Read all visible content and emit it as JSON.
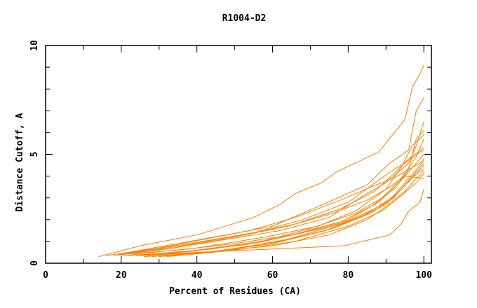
{
  "chart_data": {
    "type": "line",
    "title": "R1004-D2",
    "xlabel": "Percent of Residues (CA)",
    "ylabel": "Distance Cutoff, A",
    "xlim": [
      0,
      102
    ],
    "ylim": [
      0,
      10
    ],
    "xticks": [
      0,
      20,
      40,
      60,
      80,
      100
    ],
    "yticks": [
      0,
      5,
      10
    ],
    "grid": false,
    "line_color": "#ff8000",
    "series": [
      {
        "points": [
          [
            14,
            0.3
          ],
          [
            25,
            0.8
          ],
          [
            40,
            1.3
          ],
          [
            55,
            2.1
          ],
          [
            62,
            2.7
          ],
          [
            66,
            3.2
          ],
          [
            73,
            3.7
          ],
          [
            77,
            4.2
          ],
          [
            88,
            5.1
          ],
          [
            95,
            6.6
          ],
          [
            97,
            8.1
          ],
          [
            99,
            8.7
          ],
          [
            100,
            9.1
          ]
        ]
      },
      {
        "points": [
          [
            20,
            0.35
          ],
          [
            40,
            0.5
          ],
          [
            60,
            0.65
          ],
          [
            79,
            0.8
          ],
          [
            91,
            1.3
          ],
          [
            94,
            1.8
          ],
          [
            96,
            2.4
          ],
          [
            99,
            2.8
          ],
          [
            100,
            3.4
          ]
        ]
      },
      {
        "points": [
          [
            16,
            0.35
          ],
          [
            30,
            0.7
          ],
          [
            45,
            1.2
          ],
          [
            60,
            1.7
          ],
          [
            76,
            2.9
          ],
          [
            85,
            3.6
          ],
          [
            91,
            4.6
          ],
          [
            96,
            5.2
          ],
          [
            98,
            7.0
          ],
          [
            100,
            7.6
          ]
        ]
      },
      {
        "points": [
          [
            18,
            0.35
          ],
          [
            32,
            0.65
          ],
          [
            48,
            1.1
          ],
          [
            62,
            1.5
          ],
          [
            75,
            2.1
          ],
          [
            84,
            3.1
          ],
          [
            90,
            3.7
          ],
          [
            96,
            4.6
          ],
          [
            98,
            5.4
          ],
          [
            100,
            6.5
          ]
        ]
      },
      {
        "points": [
          [
            20,
            0.4
          ],
          [
            35,
            0.6
          ],
          [
            50,
            0.9
          ],
          [
            65,
            1.3
          ],
          [
            78,
            1.9
          ],
          [
            86,
            2.6
          ],
          [
            92,
            3.4
          ],
          [
            96,
            4.3
          ],
          [
            98,
            5.7
          ],
          [
            100,
            6.1
          ]
        ]
      },
      {
        "points": [
          [
            22,
            0.35
          ],
          [
            38,
            0.55
          ],
          [
            55,
            0.9
          ],
          [
            68,
            1.4
          ],
          [
            80,
            2.0
          ],
          [
            88,
            2.8
          ],
          [
            93,
            3.6
          ],
          [
            97,
            4.4
          ],
          [
            100,
            5.0
          ]
        ]
      },
      {
        "points": [
          [
            24,
            0.35
          ],
          [
            40,
            0.6
          ],
          [
            57,
            1.0
          ],
          [
            70,
            1.6
          ],
          [
            82,
            2.3
          ],
          [
            89,
            3.0
          ],
          [
            94,
            3.9
          ],
          [
            98,
            4.9
          ],
          [
            100,
            5.7
          ]
        ]
      },
      {
        "points": [
          [
            20,
            0.4
          ],
          [
            36,
            0.8
          ],
          [
            52,
            1.3
          ],
          [
            66,
            1.8
          ],
          [
            78,
            2.5
          ],
          [
            87,
            3.3
          ],
          [
            92,
            4.1
          ],
          [
            96,
            4.8
          ],
          [
            100,
            5.3
          ]
        ]
      },
      {
        "points": [
          [
            25,
            0.35
          ],
          [
            42,
            0.5
          ],
          [
            60,
            0.8
          ],
          [
            75,
            1.3
          ],
          [
            85,
            2.0
          ],
          [
            90,
            2.6
          ],
          [
            95,
            3.3
          ],
          [
            98,
            3.9
          ],
          [
            100,
            4.2
          ]
        ]
      },
      {
        "points": [
          [
            28,
            0.3
          ],
          [
            45,
            0.55
          ],
          [
            62,
            1.0
          ],
          [
            76,
            1.6
          ],
          [
            86,
            2.3
          ],
          [
            92,
            3.0
          ],
          [
            96,
            3.8
          ],
          [
            100,
            4.6
          ]
        ]
      },
      {
        "points": [
          [
            21,
            0.45
          ],
          [
            38,
            0.9
          ],
          [
            55,
            1.4
          ],
          [
            68,
            2.0
          ],
          [
            80,
            2.8
          ],
          [
            88,
            3.8
          ],
          [
            92,
            4.3
          ],
          [
            95,
            4.6
          ],
          [
            99,
            5.1
          ],
          [
            100,
            5.2
          ]
        ]
      },
      {
        "points": [
          [
            30,
            0.3
          ],
          [
            48,
            0.6
          ],
          [
            64,
            1.1
          ],
          [
            78,
            1.8
          ],
          [
            87,
            2.5
          ],
          [
            93,
            3.2
          ],
          [
            97,
            4.0
          ],
          [
            100,
            4.3
          ]
        ]
      },
      {
        "points": [
          [
            23,
            0.4
          ],
          [
            40,
            0.7
          ],
          [
            58,
            1.2
          ],
          [
            72,
            1.7
          ],
          [
            82,
            2.4
          ],
          [
            90,
            3.4
          ],
          [
            94,
            4.4
          ],
          [
            97,
            5.4
          ],
          [
            100,
            5.9
          ]
        ]
      },
      {
        "points": [
          [
            26,
            0.3
          ],
          [
            43,
            0.5
          ],
          [
            60,
            0.9
          ],
          [
            74,
            1.5
          ],
          [
            84,
            2.2
          ],
          [
            91,
            2.9
          ],
          [
            95,
            3.7
          ],
          [
            99,
            4.5
          ],
          [
            100,
            4.8
          ]
        ]
      },
      {
        "points": [
          [
            19,
            0.4
          ],
          [
            34,
            0.7
          ],
          [
            50,
            1.2
          ],
          [
            64,
            1.7
          ],
          [
            76,
            2.3
          ],
          [
            85,
            2.9
          ],
          [
            91,
            3.5
          ],
          [
            95,
            4.0
          ],
          [
            100,
            3.9
          ]
        ]
      },
      {
        "points": [
          [
            27,
            0.35
          ],
          [
            44,
            0.65
          ],
          [
            60,
            1.1
          ],
          [
            73,
            1.6
          ],
          [
            83,
            2.1
          ],
          [
            90,
            2.7
          ],
          [
            94,
            3.4
          ],
          [
            98,
            4.1
          ],
          [
            100,
            4.5
          ]
        ]
      },
      {
        "points": [
          [
            22,
            0.5
          ],
          [
            38,
            1.0
          ],
          [
            54,
            1.5
          ],
          [
            66,
            2.1
          ],
          [
            78,
            2.9
          ],
          [
            86,
            3.5
          ],
          [
            92,
            3.9
          ],
          [
            96,
            4.3
          ],
          [
            100,
            4.7
          ]
        ]
      },
      {
        "points": [
          [
            32,
            0.3
          ],
          [
            50,
            0.6
          ],
          [
            66,
            1.0
          ],
          [
            80,
            1.7
          ],
          [
            89,
            2.4
          ],
          [
            94,
            3.1
          ],
          [
            98,
            3.7
          ],
          [
            100,
            4.1
          ]
        ]
      }
    ]
  }
}
